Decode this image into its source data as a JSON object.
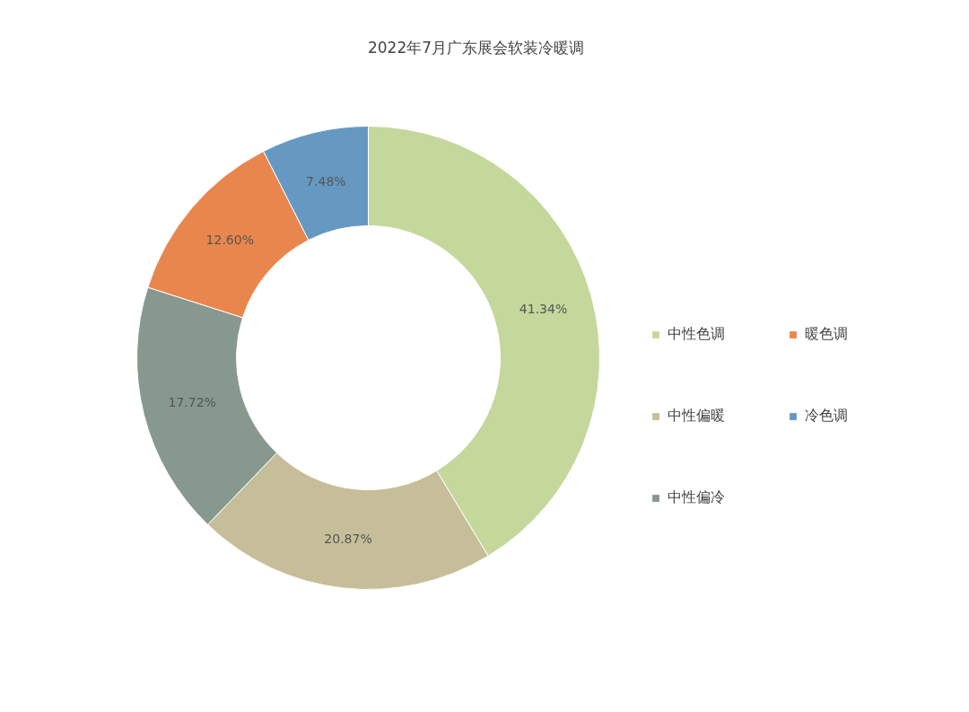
{
  "chart_data": {
    "type": "donut",
    "title": "2022年7月广东展会软装冷暖调",
    "categories": [
      "中性色调",
      "中性偏暖",
      "中性偏冷",
      "暖色调",
      "冷色调"
    ],
    "values": [
      41.34,
      20.87,
      17.72,
      12.6,
      7.48
    ],
    "value_labels": [
      "41.34%",
      "20.87%",
      "17.72%",
      "12.60%",
      "7.48%"
    ],
    "colors": [
      "#c5d89c",
      "#c6be98",
      "#87998f",
      "#e8864e",
      "#6699c2"
    ],
    "legend": "right"
  }
}
